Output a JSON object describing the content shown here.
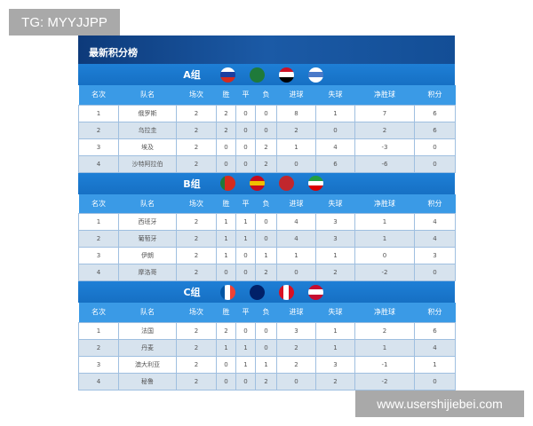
{
  "watermarks": {
    "top_left": "TG: MYYJJPP",
    "bottom_right": "www.usershijiebei.com"
  },
  "title": "最新积分榜",
  "columns": [
    "名次",
    "队名",
    "场次",
    "胜",
    "平",
    "负",
    "进球",
    "失球",
    "净胜球",
    "积分"
  ],
  "groups": [
    {
      "name": "A组",
      "flags": [
        [
          "#ffffff",
          "#1c3fa0",
          "#d52b1e"
        ],
        [
          "#1f7a3a",
          "#1f7a3a",
          "#1f7a3a"
        ],
        [
          "#ce1126",
          "#ffffff",
          "#000000"
        ],
        [
          "#ffffff",
          "#4a7ac9",
          "#ffffff"
        ]
      ],
      "flag_icons": [
        "russia-flag-icon",
        "saudi-arabia-flag-icon",
        "egypt-flag-icon",
        "uruguay-flag-icon"
      ],
      "rows": [
        [
          "1",
          "俄罗斯",
          "2",
          "2",
          "0",
          "0",
          "8",
          "1",
          "7",
          "6"
        ],
        [
          "2",
          "乌拉圭",
          "2",
          "2",
          "0",
          "0",
          "2",
          "0",
          "2",
          "6"
        ],
        [
          "3",
          "埃及",
          "2",
          "0",
          "0",
          "2",
          "1",
          "4",
          "-3",
          "0"
        ],
        [
          "4",
          "沙特阿拉伯",
          "2",
          "0",
          "0",
          "2",
          "0",
          "6",
          "-6",
          "0"
        ]
      ]
    },
    {
      "name": "B组",
      "flags": [
        [
          "#1f7a3a",
          "#d52b1e",
          "#d52b1e"
        ],
        [
          "#c60b1e",
          "#f1bf00",
          "#c60b1e"
        ],
        [
          "#c1272d",
          "#c1272d",
          "#c1272d"
        ],
        [
          "#239f40",
          "#ffffff",
          "#da0000"
        ]
      ],
      "flag_icons": [
        "portugal-flag-icon",
        "spain-flag-icon",
        "morocco-flag-icon",
        "iran-flag-icon"
      ],
      "rows": [
        [
          "1",
          "西班牙",
          "2",
          "1",
          "1",
          "0",
          "4",
          "3",
          "1",
          "4"
        ],
        [
          "2",
          "葡萄牙",
          "2",
          "1",
          "1",
          "0",
          "4",
          "3",
          "1",
          "4"
        ],
        [
          "3",
          "伊朗",
          "2",
          "1",
          "0",
          "1",
          "1",
          "1",
          "0",
          "3"
        ],
        [
          "4",
          "摩洛哥",
          "2",
          "0",
          "0",
          "2",
          "0",
          "2",
          "-2",
          "0"
        ]
      ]
    },
    {
      "name": "C组",
      "flags": [
        [
          "#0055a4",
          "#ffffff",
          "#ef4135"
        ],
        [
          "#012169",
          "#012169",
          "#012169"
        ],
        [
          "#d91023",
          "#ffffff",
          "#d91023"
        ],
        [
          "#c60c30",
          "#ffffff",
          "#c60c30"
        ]
      ],
      "flag_icons": [
        "france-flag-icon",
        "australia-flag-icon",
        "peru-flag-icon",
        "denmark-flag-icon"
      ],
      "rows": [
        [
          "1",
          "法国",
          "2",
          "2",
          "0",
          "0",
          "3",
          "1",
          "2",
          "6"
        ],
        [
          "2",
          "丹麦",
          "2",
          "1",
          "1",
          "0",
          "2",
          "1",
          "1",
          "4"
        ],
        [
          "3",
          "澳大利亚",
          "2",
          "0",
          "1",
          "1",
          "2",
          "3",
          "-1",
          "1"
        ],
        [
          "4",
          "秘鲁",
          "2",
          "0",
          "0",
          "2",
          "0",
          "2",
          "-2",
          "0"
        ]
      ]
    }
  ]
}
